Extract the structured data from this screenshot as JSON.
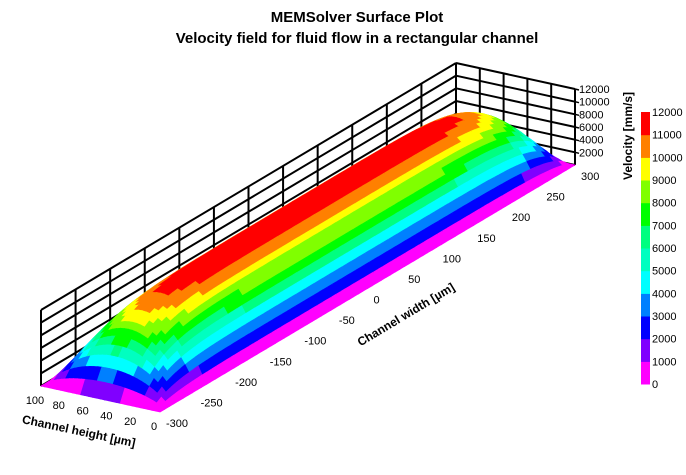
{
  "chart_data": {
    "type": "surface",
    "title": "MEMSolver Surface Plot",
    "subtitle": "Velocity field for fluid flow in a rectangular channel",
    "xlabel": "Channel width [µm]",
    "ylabel": "Channel height [µm]",
    "zlabel": "Velocity [mm/s]",
    "x_range": [
      -300,
      300
    ],
    "x_ticks": [
      "-300",
      "-250",
      "-200",
      "-150",
      "-100",
      "-50",
      "0",
      "50",
      "100",
      "150",
      "200",
      "250",
      "300"
    ],
    "y_range": [
      0,
      100
    ],
    "y_ticks": [
      "0",
      "20",
      "40",
      "60",
      "80",
      "100"
    ],
    "z_range": [
      0,
      12000
    ],
    "z_ticks": [
      "2000",
      "4000",
      "6000",
      "8000",
      "10000",
      "12000"
    ],
    "peak_velocity": 11900,
    "colorbar": {
      "label": "Velocity [mm/s]",
      "ticks": [
        "0",
        "1000",
        "2000",
        "3000",
        "4000",
        "5000",
        "6000",
        "7000",
        "8000",
        "9000",
        "10000",
        "11000",
        "12000"
      ],
      "colors": [
        "#ff00ff",
        "#8000ff",
        "#0000ff",
        "#0080ff",
        "#00ffff",
        "#00ffc0",
        "#00ff80",
        "#00ff00",
        "#80ff00",
        "#ffff00",
        "#ff8000",
        "#ff0000"
      ]
    }
  }
}
